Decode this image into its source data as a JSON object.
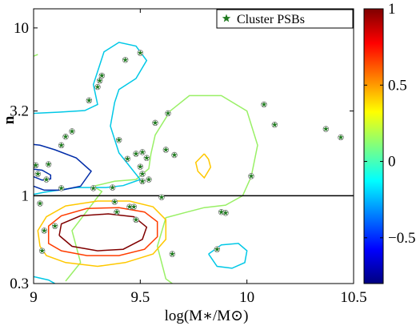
{
  "chart_data": {
    "type": "scatter",
    "title": "",
    "xlabel": "log(M∗/M⊙)",
    "ylabel": "n",
    "xlim": [
      9.0,
      10.5
    ],
    "ylim": [
      0.3,
      13.0
    ],
    "yscale": "log",
    "x_ticks": [
      9.0,
      9.5,
      10.0,
      10.5
    ],
    "x_tick_labels": [
      "9",
      "9.5",
      "10",
      "10.5"
    ],
    "y_ticks": [
      0.3,
      1.0,
      3.2,
      10.0
    ],
    "y_tick_labels": [
      "0.3",
      "1",
      "3.2",
      "10"
    ],
    "reference_line": {
      "y": 1.0,
      "color": "#000000"
    },
    "legend": {
      "position": "top-right",
      "entries": [
        "Cluster PSBs"
      ]
    },
    "series": [
      {
        "name": "Cluster PSBs",
        "marker": "star",
        "color": "#1f7a1f",
        "points": [
          [
            9.5,
            7.1
          ],
          [
            9.43,
            6.45
          ],
          [
            9.32,
            5.2
          ],
          [
            9.31,
            4.85
          ],
          [
            9.3,
            4.45
          ],
          [
            9.26,
            3.7
          ],
          [
            9.63,
            3.1
          ],
          [
            9.57,
            2.72
          ],
          [
            9.18,
            2.42
          ],
          [
            9.15,
            2.25
          ],
          [
            9.13,
            2.0
          ],
          [
            9.4,
            2.15
          ],
          [
            9.51,
            1.82
          ],
          [
            9.48,
            1.78
          ],
          [
            9.53,
            1.68
          ],
          [
            9.66,
            1.75
          ],
          [
            9.62,
            1.88
          ],
          [
            9.5,
            1.49
          ],
          [
            9.44,
            1.66
          ],
          [
            9.01,
            1.52
          ],
          [
            9.07,
            1.54
          ],
          [
            9.02,
            1.35
          ],
          [
            9.06,
            1.25
          ],
          [
            9.13,
            1.11
          ],
          [
            9.51,
            1.35
          ],
          [
            9.28,
            1.11
          ],
          [
            9.37,
            1.12
          ],
          [
            9.51,
            1.22
          ],
          [
            9.54,
            1.25
          ],
          [
            9.6,
            0.98
          ],
          [
            9.03,
            0.9
          ],
          [
            9.38,
            0.92
          ],
          [
            9.45,
            0.86
          ],
          [
            9.47,
            0.86
          ],
          [
            9.39,
            0.8
          ],
          [
            9.48,
            0.72
          ],
          [
            9.1,
            0.66
          ],
          [
            9.9,
            0.79
          ],
          [
            9.88,
            0.8
          ],
          [
            10.02,
            1.31
          ],
          [
            10.08,
            3.5
          ],
          [
            10.13,
            2.65
          ],
          [
            10.37,
            2.5
          ],
          [
            10.44,
            2.23
          ],
          [
            9.05,
            0.62
          ],
          [
            9.04,
            0.47
          ],
          [
            9.86,
            0.48
          ],
          [
            9.65,
            0.45
          ]
        ]
      }
    ],
    "contour_levels": [
      -0.8,
      -0.2,
      0.2,
      0.4,
      0.6,
      0.8
    ],
    "contours": [
      {
        "level": 0.2,
        "color": "#99f066",
        "points": [
          [
            9.15,
            0.31
          ],
          [
            9.22,
            0.4
          ],
          [
            9.18,
            0.62
          ],
          [
            9.32,
            1.06
          ],
          [
            9.28,
            1.14
          ],
          [
            9.38,
            1.22
          ],
          [
            9.48,
            1.25
          ],
          [
            9.54,
            1.45
          ],
          [
            9.55,
            1.78
          ],
          [
            9.57,
            2.3
          ],
          [
            9.64,
            3.2
          ],
          [
            9.73,
            3.95
          ],
          [
            9.88,
            3.95
          ],
          [
            10.0,
            3.2
          ],
          [
            10.05,
            2.0
          ],
          [
            10.02,
            1.3
          ],
          [
            9.98,
            1.0
          ],
          [
            9.9,
            0.88
          ],
          [
            9.8,
            0.85
          ],
          [
            9.72,
            0.8
          ],
          [
            9.62,
            0.74
          ],
          [
            9.58,
            0.5
          ],
          [
            9.62,
            0.32
          ],
          [
            9.65,
            0.3
          ]
        ]
      },
      {
        "level": 0.2,
        "color": "#99f066",
        "points": [
          [
            9.0,
            6.8
          ],
          [
            9.02,
            6.95
          ]
        ]
      },
      {
        "level": 0.4,
        "color": "#ffc800",
        "points": [
          [
            9.03,
            0.5
          ],
          [
            9.02,
            0.62
          ],
          [
            9.06,
            0.75
          ],
          [
            9.15,
            0.87
          ],
          [
            9.3,
            0.93
          ],
          [
            9.45,
            0.93
          ],
          [
            9.56,
            0.86
          ],
          [
            9.62,
            0.72
          ],
          [
            9.62,
            0.55
          ],
          [
            9.56,
            0.45
          ],
          [
            9.43,
            0.4
          ],
          [
            9.3,
            0.38
          ],
          [
            9.15,
            0.4
          ],
          [
            9.06,
            0.44
          ],
          [
            9.03,
            0.5
          ]
        ]
      },
      {
        "level": 0.4,
        "color": "#ffc800",
        "points": [
          [
            9.8,
            1.78
          ],
          [
            9.82,
            1.65
          ],
          [
            9.83,
            1.48
          ],
          [
            9.8,
            1.28
          ],
          [
            9.77,
            1.4
          ],
          [
            9.76,
            1.58
          ],
          [
            9.8,
            1.78
          ]
        ]
      },
      {
        "level": 0.6,
        "color": "#ff3c00",
        "points": [
          [
            9.07,
            0.56
          ],
          [
            9.07,
            0.66
          ],
          [
            9.13,
            0.76
          ],
          [
            9.25,
            0.84
          ],
          [
            9.4,
            0.85
          ],
          [
            9.52,
            0.8
          ],
          [
            9.58,
            0.7
          ],
          [
            9.58,
            0.57
          ],
          [
            9.52,
            0.48
          ],
          [
            9.4,
            0.44
          ],
          [
            9.25,
            0.44
          ],
          [
            9.13,
            0.47
          ],
          [
            9.07,
            0.52
          ],
          [
            9.07,
            0.56
          ]
        ]
      },
      {
        "level": 0.8,
        "color": "#800000",
        "points": [
          [
            9.12,
            0.58
          ],
          [
            9.13,
            0.68
          ],
          [
            9.22,
            0.76
          ],
          [
            9.35,
            0.78
          ],
          [
            9.47,
            0.75
          ],
          [
            9.53,
            0.65
          ],
          [
            9.51,
            0.55
          ],
          [
            9.42,
            0.48
          ],
          [
            9.3,
            0.47
          ],
          [
            9.18,
            0.5
          ],
          [
            9.12,
            0.58
          ]
        ]
      },
      {
        "level": -0.2,
        "color": "#00c8e6",
        "points": [
          [
            9.0,
            3.1
          ],
          [
            9.12,
            3.15
          ],
          [
            9.24,
            3.22
          ],
          [
            9.3,
            3.5
          ],
          [
            9.28,
            4.6
          ],
          [
            9.33,
            7.2
          ],
          [
            9.4,
            8.2
          ],
          [
            9.48,
            7.8
          ],
          [
            9.53,
            6.4
          ],
          [
            9.48,
            5.0
          ],
          [
            9.4,
            4.3
          ],
          [
            9.38,
            3.6
          ],
          [
            9.36,
            2.6
          ],
          [
            9.4,
            1.8
          ],
          [
            9.5,
            1.25
          ],
          [
            9.42,
            1.15
          ],
          [
            9.34,
            1.12
          ],
          [
            9.2,
            1.12
          ],
          [
            9.05,
            1.05
          ],
          [
            9.0,
            1.02
          ]
        ]
      },
      {
        "level": -0.2,
        "color": "#00c8e6",
        "points": [
          [
            9.82,
            0.45
          ],
          [
            9.88,
            0.51
          ],
          [
            9.96,
            0.52
          ],
          [
            10.0,
            0.47
          ],
          [
            9.99,
            0.4
          ],
          [
            9.93,
            0.37
          ],
          [
            9.86,
            0.38
          ],
          [
            9.82,
            0.45
          ]
        ]
      },
      {
        "level": -0.2,
        "color": "#00c8e6",
        "points": [
          [
            9.0,
            0.33
          ],
          [
            9.07,
            0.315
          ],
          [
            9.1,
            0.3
          ]
        ]
      },
      {
        "level": -0.8,
        "color": "#002ca8",
        "points": [
          [
            9.0,
            1.14
          ],
          [
            9.05,
            1.08
          ],
          [
            9.13,
            1.08
          ],
          [
            9.22,
            1.14
          ],
          [
            9.27,
            1.4
          ],
          [
            9.2,
            1.68
          ],
          [
            9.1,
            1.88
          ],
          [
            9.03,
            2.0
          ],
          [
            9.0,
            2.02
          ]
        ]
      },
      {
        "level": -0.8,
        "color": "#002ca8",
        "points": [
          [
            9.0,
            1.3
          ],
          [
            9.04,
            1.24
          ],
          [
            9.08,
            1.26
          ],
          [
            9.08,
            1.33
          ],
          [
            9.04,
            1.42
          ],
          [
            9.0,
            1.44
          ]
        ]
      }
    ],
    "colorbar": {
      "range": [
        -0.8,
        1.0
      ],
      "ticks": [
        1.0,
        0.5,
        0.0,
        -0.5
      ],
      "tick_labels": [
        "1",
        "0.5",
        "0",
        "−0.5"
      ],
      "colors": [
        "#00007f",
        "#0000ff",
        "#007fff",
        "#00ffff",
        "#7fff7f",
        "#ffff00",
        "#ff7f00",
        "#ff0000",
        "#7f0000"
      ]
    }
  }
}
